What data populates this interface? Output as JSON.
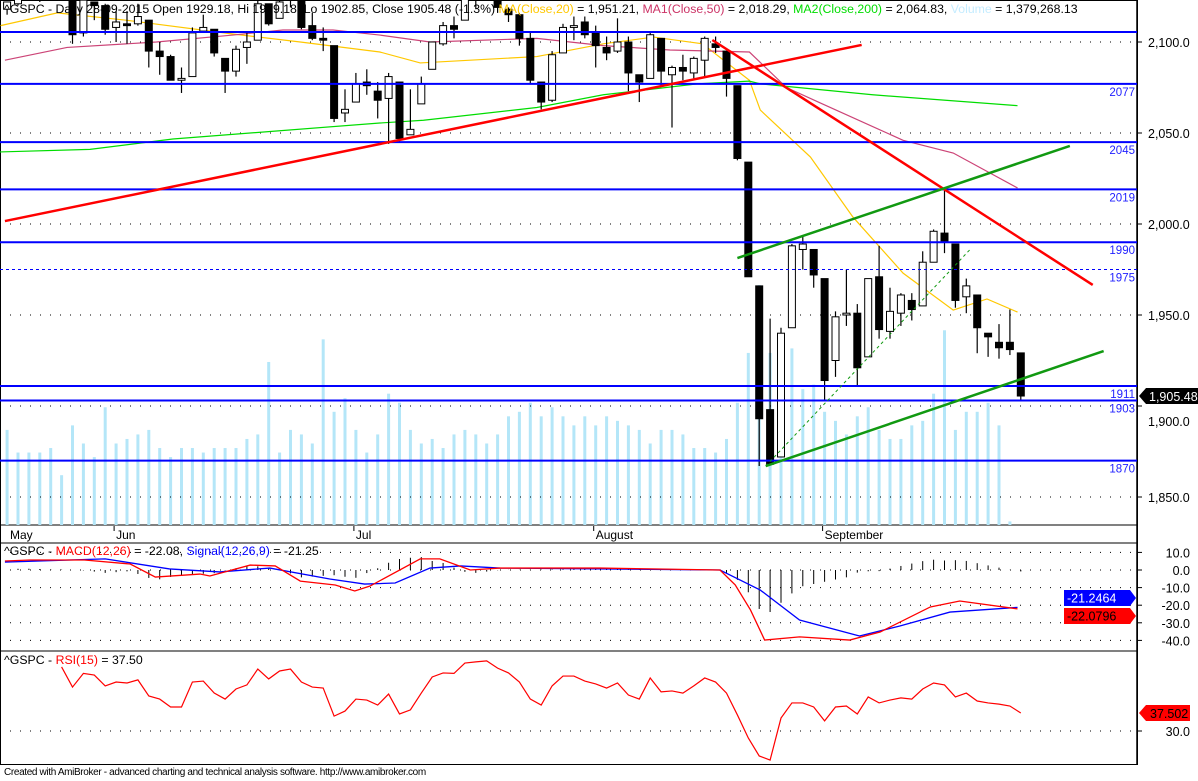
{
  "header": {
    "segments": [
      {
        "text": "^GSPC - Daily 28-09-2015 Open 1929.18, Hi 1929.18, Lo 1902.85, Close 1905.48 (-1.3%) ",
        "color": "#000000"
      },
      {
        "text": "MA(Close,20)",
        "color": "#ffc800"
      },
      {
        "text": " = 1,951.21, ",
        "color": "#000000"
      },
      {
        "text": "MA1(Close,50)",
        "color": "#cc3366"
      },
      {
        "text": " = 2,018.29, ",
        "color": "#000000"
      },
      {
        "text": "MA2(Close,200)",
        "color": "#00dd00"
      },
      {
        "text": " = 2,064.83, ",
        "color": "#000000"
      },
      {
        "text": "Volume",
        "color": "#c4ecff"
      },
      {
        "text": " = 1,379,268.13",
        "color": "#000000"
      }
    ]
  },
  "macd_header": {
    "segments": [
      {
        "text": "^GSPC - ",
        "color": "#000000"
      },
      {
        "text": "MACD(12,26)",
        "color": "#ff0000"
      },
      {
        "text": " = -22.08, ",
        "color": "#000000"
      },
      {
        "text": "Signal(12,26,9)",
        "color": "#0000ff"
      },
      {
        "text": " = -21.25",
        "color": "#000000"
      }
    ]
  },
  "rsi_header": {
    "segments": [
      {
        "text": "^GSPC - ",
        "color": "#000000"
      },
      {
        "text": "RSI(15)",
        "color": "#ff0000"
      },
      {
        "text": " = 37.50",
        "color": "#000000"
      }
    ]
  },
  "footer": "Created with AmiBroker - advanced charting and technical analysis software. http://www.amibroker.com",
  "chart_data": {
    "type": "candlestick",
    "symbol": "^GSPC",
    "period": "Daily",
    "first_index_date": "15-05-2015",
    "price_axis": {
      "ticks": [
        "2,100.0",
        "2,050.0",
        "2,000.0",
        "1,950.0",
        "1,900.0",
        "1,850.0"
      ],
      "tick_values": [
        2100,
        2050,
        2000,
        1950,
        1900,
        1850
      ],
      "grid": "dotted"
    },
    "date_axis": {
      "labels": [
        {
          "text": "May",
          "index": -1
        },
        {
          "text": "Jun",
          "index": 9
        },
        {
          "text": "Jul",
          "index": 31
        },
        {
          "text": "August",
          "index": 53
        },
        {
          "text": "September",
          "index": 74
        }
      ]
    },
    "last_price_label": "1,905.48",
    "colors": {
      "up": "#ffffff",
      "down": "#000000",
      "volume": "#b4e6f8",
      "level": "#0000ff",
      "trend_red": "#ff0000",
      "trend_green": "#119911",
      "ma20": "#ffc800",
      "ma50": "#cc4477",
      "ma200": "#00dd00"
    },
    "ohlc": [
      [
        2118,
        2122,
        2115,
        2122
      ],
      [
        2121,
        2131,
        2120,
        2129
      ],
      [
        2129,
        2134,
        2125,
        2128
      ],
      [
        2128,
        2133,
        2122,
        2125
      ],
      [
        2125,
        2134,
        2123,
        2131
      ],
      [
        2130,
        2130,
        2123,
        2126
      ],
      [
        2125,
        2126,
        2099,
        2104
      ],
      [
        2105,
        2126,
        2103,
        2123
      ],
      [
        2122,
        2122,
        2112,
        2120
      ],
      [
        2120,
        2121,
        2104,
        2107
      ],
      [
        2108,
        2117,
        2100,
        2111
      ],
      [
        2110,
        2117,
        2099,
        2109
      ],
      [
        2110,
        2121,
        2109,
        2114
      ],
      [
        2112,
        2112,
        2086,
        2095
      ],
      [
        2095,
        2100,
        2082,
        2092
      ],
      [
        2092,
        2093,
        2079,
        2079
      ],
      [
        2079,
        2086,
        2072,
        2080
      ],
      [
        2081,
        2108,
        2081,
        2105
      ],
      [
        2106,
        2115,
        2106,
        2108
      ],
      [
        2107,
        2107,
        2092,
        2094
      ],
      [
        2091,
        2091,
        2072,
        2084
      ],
      [
        2084,
        2098,
        2081,
        2096
      ],
      [
        2097,
        2106,
        2088,
        2100
      ],
      [
        2101,
        2126,
        2101,
        2121
      ],
      [
        2121,
        2121,
        2109,
        2110
      ],
      [
        2113,
        2126,
        2113,
        2122
      ],
      [
        2123,
        2128,
        2119,
        2124
      ],
      [
        2124,
        2125,
        2107,
        2108
      ],
      [
        2109,
        2116,
        2101,
        2102
      ],
      [
        2102,
        2108,
        2095,
        2101
      ],
      [
        2098,
        2098,
        2056,
        2058
      ],
      [
        2061,
        2074,
        2056,
        2063
      ],
      [
        2067,
        2083,
        2067,
        2077
      ],
      [
        2078,
        2085,
        2071,
        2076
      ],
      [
        2073,
        2078,
        2058,
        2068
      ],
      [
        2069,
        2083,
        2044,
        2081
      ],
      [
        2078,
        2078,
        2045,
        2047
      ],
      [
        2049,
        2074,
        2049,
        2052
      ],
      [
        2066,
        2081,
        2066,
        2077
      ],
      [
        2085,
        2100,
        2085,
        2100
      ],
      [
        2099,
        2111,
        2098,
        2109
      ],
      [
        2109,
        2114,
        2102,
        2107
      ],
      [
        2112,
        2124,
        2112,
        2124
      ],
      [
        2124,
        2127,
        2118,
        2127
      ],
      [
        2127,
        2132,
        2124,
        2128
      ],
      [
        2125,
        2128,
        2116,
        2119
      ],
      [
        2118,
        2119,
        2111,
        2115
      ],
      [
        2115,
        2116,
        2098,
        2102
      ],
      [
        2102,
        2106,
        2077,
        2079
      ],
      [
        2078,
        2078,
        2063,
        2067
      ],
      [
        2068,
        2095,
        2067,
        2093
      ],
      [
        2094,
        2110,
        2094,
        2108
      ],
      [
        2108,
        2114,
        2101,
        2109
      ],
      [
        2111,
        2114,
        2102,
        2104
      ],
      [
        2105,
        2109,
        2086,
        2098
      ],
      [
        2097,
        2103,
        2090,
        2094
      ],
      [
        2095,
        2113,
        2094,
        2100
      ],
      [
        2100,
        2103,
        2073,
        2083
      ],
      [
        2082,
        2082,
        2067,
        2078
      ],
      [
        2080,
        2105,
        2080,
        2104
      ],
      [
        2102,
        2102,
        2076,
        2084
      ],
      [
        2082,
        2087,
        2053,
        2086
      ],
      [
        2086,
        2093,
        2079,
        2084
      ],
      [
        2083,
        2092,
        2080,
        2091
      ],
      [
        2090,
        2103,
        2081,
        2102
      ],
      [
        2099,
        2103,
        2094,
        2097
      ],
      [
        2095,
        2095,
        2070,
        2080
      ],
      [
        2076,
        2076,
        2035,
        2036
      ],
      [
        2034,
        2034,
        1971,
        1971
      ],
      [
        1966,
        1966,
        1867,
        1893
      ],
      [
        1898,
        1948,
        1868,
        1868
      ],
      [
        1872,
        1943,
        1872,
        1940
      ],
      [
        1943,
        1989,
        1943,
        1988
      ],
      [
        1986,
        1993,
        1975,
        1989
      ],
      [
        1986,
        1986,
        1965,
        1972
      ],
      [
        1970,
        1970,
        1903,
        1914
      ],
      [
        1925,
        1952,
        1916,
        1949
      ],
      [
        1950,
        1975,
        1944,
        1951
      ],
      [
        1951,
        1956,
        1911,
        1921
      ],
      [
        1927,
        1970,
        1927,
        1970
      ],
      [
        1971,
        1988,
        1937,
        1942
      ],
      [
        1941,
        1965,
        1937,
        1952
      ],
      [
        1951,
        1962,
        1944,
        1961
      ],
      [
        1958,
        1962,
        1947,
        1953
      ],
      [
        1955,
        1985,
        1955,
        1979
      ],
      [
        1979,
        1997,
        1979,
        1996
      ],
      [
        1995,
        2020,
        1984,
        1990
      ],
      [
        1989,
        1989,
        1954,
        1958
      ],
      [
        1960,
        1970,
        1951,
        1966
      ],
      [
        1961,
        1961,
        1929,
        1943
      ],
      [
        1940,
        1940,
        1927,
        1938
      ],
      [
        1935,
        1945,
        1926,
        1932
      ],
      [
        1935,
        1953,
        1928,
        1931
      ],
      [
        1929.18,
        1929.18,
        1902.85,
        1905.48
      ]
    ],
    "volume": [
      3400,
      2900,
      2900,
      2900,
      3000,
      2400,
      3500,
      3100,
      2800,
      3900,
      3100,
      3200,
      3300,
      3400,
      3000,
      2800,
      3000,
      3000,
      2900,
      3000,
      3000,
      3000,
      3200,
      3300,
      4900,
      2900,
      3400,
      3300,
      3100,
      5400,
      3800,
      4100,
      3400,
      2900,
      3300,
      4200,
      4000,
      3400,
      3100,
      3200,
      3000,
      3300,
      3400,
      3300,
      3100,
      3300,
      3700,
      3800,
      4000,
      3700,
      3900,
      3700,
      3500,
      3700,
      3500,
      3700,
      3600,
      3500,
      3400,
      3100,
      3400,
      3400,
      3300,
      3000,
      3000,
      2900,
      3200,
      4000,
      5100,
      6600,
      5100,
      5100,
      5200,
      4300,
      4400,
      3800,
      3600,
      3300,
      3700,
      3900,
      3400,
      3200,
      3200,
      3500,
      3600,
      4200,
      5600,
      3400,
      3800,
      3800,
      4000,
      3500,
      1379
    ],
    "moving_averages": [
      {
        "name": "MA(Close,20)",
        "value_label": "1,951.21",
        "points": [
          [
            -1.6,
            2109
          ],
          [
            3.6,
            2116
          ],
          [
            9.9,
            2112
          ],
          [
            19.7,
            2104.4
          ],
          [
            25.9,
            2100
          ],
          [
            33.2,
            2094.5
          ],
          [
            36.9,
            2088.5
          ],
          [
            47.6,
            2092
          ],
          [
            53.7,
            2099
          ],
          [
            58.3,
            2102.7
          ],
          [
            62.8,
            2099
          ],
          [
            67.1,
            2079
          ],
          [
            68.1,
            2062.6
          ],
          [
            72.7,
            2036.8
          ],
          [
            76.6,
            2003.8
          ],
          [
            81.2,
            1973
          ],
          [
            85.8,
            1952.7
          ],
          [
            88.9,
            1958.8
          ],
          [
            91.7,
            1951.6
          ]
        ]
      },
      {
        "name": "MA1(Close,50)",
        "value_label": "2,018.29",
        "points": [
          [
            -1.2,
            2090
          ],
          [
            4.5,
            2097
          ],
          [
            12.7,
            2100
          ],
          [
            19.7,
            2103.8
          ],
          [
            24.3,
            2106.6
          ],
          [
            28.9,
            2106.6
          ],
          [
            33.2,
            2103.8
          ],
          [
            37.8,
            2100
          ],
          [
            47.6,
            2102
          ],
          [
            53.7,
            2098
          ],
          [
            59.8,
            2095.6
          ],
          [
            67.1,
            2094.5
          ],
          [
            70.5,
            2075
          ],
          [
            73.6,
            2066.5
          ],
          [
            81.2,
            2046
          ],
          [
            85.8,
            2039
          ],
          [
            91.7,
            2019.8
          ]
        ]
      },
      {
        "name": "MA2(Close,200)",
        "value_label": "2,064.83",
        "points": [
          [
            -1.7,
            2039.6
          ],
          [
            6.6,
            2041
          ],
          [
            14.2,
            2046.7
          ],
          [
            33.2,
            2055.5
          ],
          [
            37.2,
            2057
          ],
          [
            47.6,
            2064
          ],
          [
            53.7,
            2071
          ],
          [
            62.3,
            2077
          ],
          [
            67.1,
            2078.5
          ],
          [
            68.1,
            2077
          ],
          [
            78.4,
            2071
          ],
          [
            91.7,
            2065
          ]
        ]
      }
    ],
    "levels": [
      {
        "value": 2105.5,
        "label": ""
      },
      {
        "value": 2077,
        "label": "2077"
      },
      {
        "value": 2045,
        "label": "2045"
      },
      {
        "value": 2019,
        "label": "2019"
      },
      {
        "value": 1990,
        "label": "1990"
      },
      {
        "value": 1975,
        "label": "1975",
        "style": "dashed"
      },
      {
        "value": 1911,
        "label": "1911"
      },
      {
        "value": 1903,
        "label": "1903"
      },
      {
        "value": 1870,
        "label": "1870"
      }
    ],
    "trendlines": [
      {
        "name": "red-support-trendline",
        "color": "red",
        "from": [
          -1.2,
          2001.6
        ],
        "to": [
          77.4,
          2098.4
        ]
      },
      {
        "name": "red-resistance-trendline",
        "color": "red",
        "from": [
          63.7,
          2101.1
        ],
        "to": [
          98.6,
          1966.5
        ]
      },
      {
        "name": "green-upper-channel-line",
        "color": "green",
        "from": [
          66,
          1981.3
        ],
        "to": [
          96.5,
          2042.9
        ]
      },
      {
        "name": "green-lower-channel-line",
        "color": "green",
        "from": [
          68.6,
          1867
        ],
        "to": [
          99.6,
          1930.2
        ]
      },
      {
        "name": "green-dashed-trendline",
        "color": "green-dashed",
        "from": [
          68.6,
          1867
        ],
        "to": [
          87.3,
          1985.7
        ]
      }
    ],
    "macd": {
      "title": "MACD(12,26)",
      "value_tag": "-22.0796",
      "signal_tag": "-21.2464",
      "ticks": [
        "10.0",
        "0.0",
        "-10.0",
        "-20.0",
        "-30.0",
        "-40.0"
      ],
      "tick_values": [
        10,
        0,
        -10,
        -20,
        -30,
        -40
      ],
      "macd_points": [
        [
          -1.2,
          5.1
        ],
        [
          1.1,
          5.7
        ],
        [
          6.1,
          5.7
        ],
        [
          10.3,
          3.4
        ],
        [
          12.6,
          -4
        ],
        [
          16.7,
          -2.3
        ],
        [
          17.6,
          -3.4
        ],
        [
          21.3,
          2.8
        ],
        [
          23.6,
          2.3
        ],
        [
          25.9,
          -6.3
        ],
        [
          29.1,
          -8.5
        ],
        [
          30.9,
          -11.9
        ],
        [
          32.3,
          -9.1
        ],
        [
          36.9,
          6.3
        ],
        [
          38.7,
          6.3
        ],
        [
          41.5,
          0
        ],
        [
          44.2,
          1.1
        ],
        [
          53.4,
          1.1
        ],
        [
          64.4,
          0
        ],
        [
          65.8,
          -8.5
        ],
        [
          67.2,
          -22.7
        ],
        [
          68.5,
          -39.8
        ],
        [
          71.7,
          -38
        ],
        [
          76.3,
          -39.8
        ],
        [
          79.1,
          -35.2
        ],
        [
          83.7,
          -21
        ],
        [
          86.4,
          -17.6
        ],
        [
          91.7,
          -22.08
        ]
      ],
      "signal_points": [
        [
          -1.2,
          4.5
        ],
        [
          8,
          6.3
        ],
        [
          13.9,
          0.6
        ],
        [
          18.5,
          -1.1
        ],
        [
          23.1,
          1.1
        ],
        [
          28.6,
          -5.1
        ],
        [
          31.8,
          -8
        ],
        [
          34.6,
          -7.4
        ],
        [
          37.8,
          1.1
        ],
        [
          40.6,
          2.3
        ],
        [
          44.2,
          1.1
        ],
        [
          64.4,
          0
        ],
        [
          68.1,
          -11.4
        ],
        [
          71.7,
          -28.4
        ],
        [
          77.2,
          -37.5
        ],
        [
          80.9,
          -31.8
        ],
        [
          85.5,
          -23.9
        ],
        [
          91.7,
          -21.25
        ]
      ]
    },
    "rsi": {
      "title": "RSI(15)",
      "value_tag": "37.502",
      "ticks": [
        "30.0"
      ],
      "tick_values": [
        30
      ],
      "start_index": 4,
      "values": [
        56.7,
        48.3,
        54,
        53.3,
        48.8,
        50.4,
        50,
        51.3,
        44.6,
        43.3,
        40,
        40,
        50.4,
        50.8,
        45.8,
        43.3,
        47.5,
        49.2,
        55.8,
        51.7,
        55,
        55.8,
        50.4,
        48.3,
        47.9,
        36.2,
        38.3,
        43.3,
        42.9,
        40.8,
        45.4,
        37.1,
        38.8,
        45.8,
        52.5,
        54.2,
        54,
        58.3,
        58.8,
        59.2,
        56.2,
        54.2,
        50.4,
        43.3,
        40.8,
        48.8,
        52.9,
        52.9,
        50.8,
        49.6,
        47.9,
        50,
        45,
        43.3,
        52.1,
        46.3,
        46.7,
        45.8,
        48.8,
        52.1,
        50.4,
        45.8,
        36.7,
        27.1,
        19.6,
        17.9,
        35.4,
        41.7,
        41.7,
        40,
        34.2,
        40,
        40.4,
        37.1,
        44.2,
        41.7,
        42.9,
        43.8,
        43.3,
        47.5,
        50,
        49.2,
        44.2,
        45.8,
        42.5,
        41.7,
        41.2,
        40.4,
        37.5
      ]
    }
  }
}
